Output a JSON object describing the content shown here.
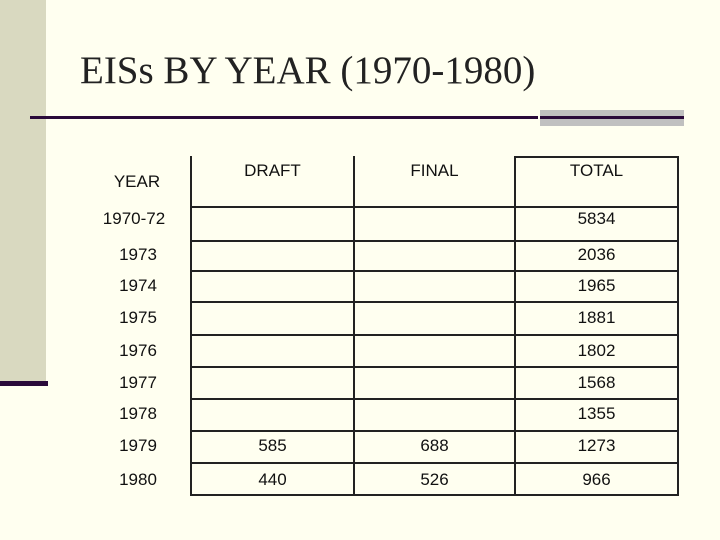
{
  "slide": {
    "title": "EISs BY YEAR (1970-1980)"
  },
  "table": {
    "headers": [
      "YEAR",
      "DRAFT",
      "FINAL",
      "TOTAL"
    ],
    "rows": [
      {
        "year": "1970-72",
        "draft": "",
        "final": "",
        "total": "5834"
      },
      {
        "year": "1973",
        "draft": "",
        "final": "",
        "total": "2036"
      },
      {
        "year": "1974",
        "draft": "",
        "final": "",
        "total": "1965"
      },
      {
        "year": "1975",
        "draft": "",
        "final": "",
        "total": "1881"
      },
      {
        "year": "1976",
        "draft": "",
        "final": "",
        "total": "1802"
      },
      {
        "year": "1977",
        "draft": "",
        "final": "",
        "total": "1568"
      },
      {
        "year": "1978",
        "draft": "",
        "final": "",
        "total": "1355"
      },
      {
        "year": "1979",
        "draft": "585",
        "final": "688",
        "total": "1273"
      },
      {
        "year": "1980",
        "draft": "440",
        "final": "526",
        "total": "966"
      }
    ]
  }
}
